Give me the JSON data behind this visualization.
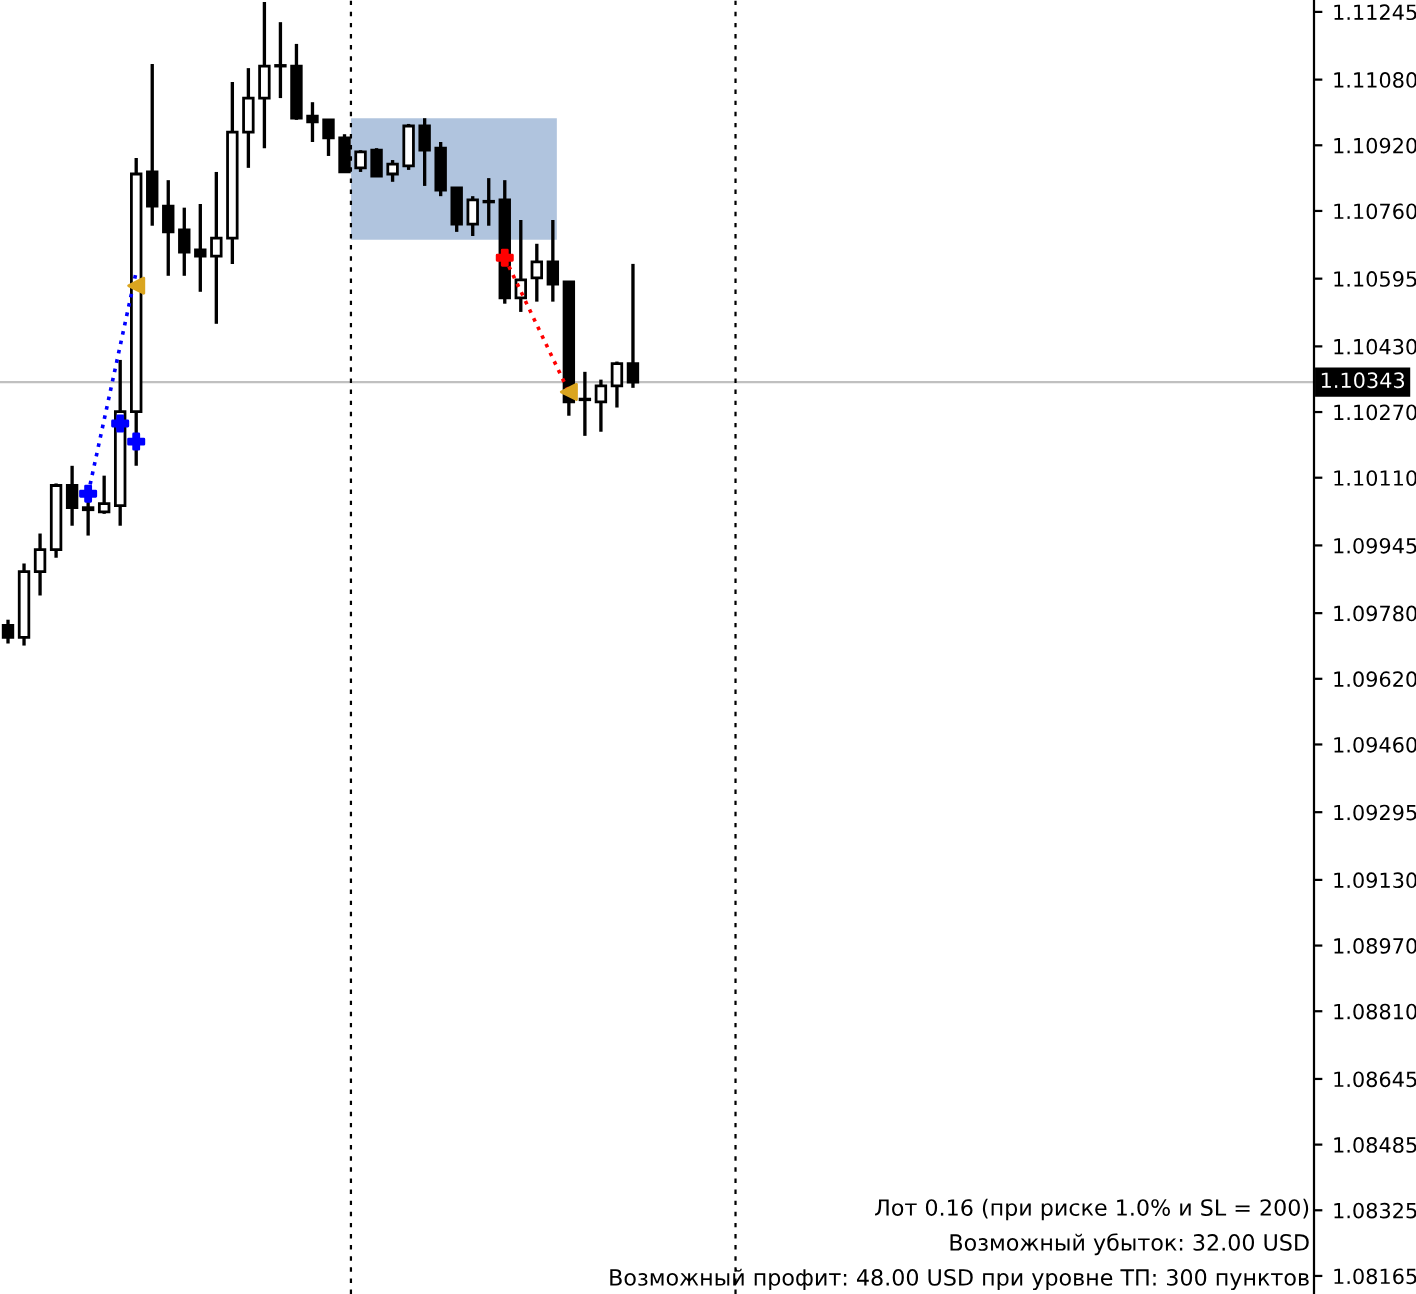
{
  "chart_data": {
    "type": "candlestick",
    "categories": [
      null,
      null,
      null,
      null,
      null,
      null,
      null,
      null,
      null,
      null,
      null,
      null,
      null,
      null,
      null,
      null,
      null,
      null,
      null,
      null,
      null,
      null,
      null,
      null,
      null,
      null,
      null,
      null,
      null,
      null,
      null,
      null,
      null,
      null,
      null,
      null,
      null,
      null,
      null,
      null,
      null,
      null,
      null,
      null,
      null,
      null,
      null,
      null,
      null,
      null,
      null,
      null,
      null,
      null,
      null,
      null,
      null,
      null,
      null,
      null,
      null,
      null,
      null,
      null,
      null,
      null,
      null,
      null,
      null,
      null,
      null,
      null,
      null,
      null,
      null,
      null,
      null,
      null,
      null,
      null,
      null,
      null
    ],
    "ohlc": [
      [
        1.0975,
        1.09764,
        1.09706,
        1.09721
      ],
      [
        1.09721,
        1.09901,
        1.09701,
        1.09881
      ],
      [
        1.09881,
        1.09974,
        1.09823,
        1.09935
      ],
      [
        1.09935,
        1.10096,
        1.09915,
        1.10091
      ],
      [
        1.10091,
        1.10139,
        1.09993,
        1.10037
      ],
      [
        1.10037,
        1.10056,
        1.09969,
        1.10032
      ],
      [
        1.10027,
        1.10115,
        1.10022,
        1.10047
      ],
      [
        1.10042,
        1.10397,
        1.09993,
        1.10271
      ],
      [
        1.10271,
        1.10889,
        1.10139,
        1.1085
      ],
      [
        1.10855,
        1.11118,
        1.10724,
        1.10772
      ],
      [
        1.10772,
        1.10835,
        1.10602,
        1.10709
      ],
      [
        1.10714,
        1.10768,
        1.10602,
        1.1066
      ],
      [
        1.10665,
        1.10777,
        1.10563,
        1.1065
      ],
      [
        1.1065,
        1.10855,
        1.10485,
        1.10694
      ],
      [
        1.10694,
        1.11074,
        1.10631,
        1.10952
      ],
      [
        1.10952,
        1.11108,
        1.10865,
        1.11035
      ],
      [
        1.11035,
        1.11269,
        1.10913,
        1.11113
      ],
      [
        1.11113,
        1.1122,
        1.11035,
        1.11113
      ],
      [
        1.11113,
        1.11167,
        1.10982,
        1.10986
      ],
      [
        1.10991,
        1.11025,
        1.10928,
        1.10977
      ],
      [
        1.10982,
        1.10982,
        1.10894,
        1.10938
      ],
      [
        1.10938,
        1.10947,
        1.10855,
        1.10855
      ],
      [
        1.10865,
        1.10908,
        1.10855,
        1.10904
      ],
      [
        1.10908,
        1.10913,
        1.10845,
        1.10845
      ],
      [
        1.1085,
        1.10884,
        1.10831,
        1.10874
      ],
      [
        1.1087,
        1.10972,
        1.1086,
        1.10967
      ],
      [
        1.10967,
        1.10986,
        1.10821,
        1.10908
      ],
      [
        1.10913,
        1.10928,
        1.10796,
        1.10811
      ],
      [
        1.10816,
        1.10816,
        1.10709,
        1.10728
      ],
      [
        1.10728,
        1.10796,
        1.10699,
        1.10787
      ],
      [
        1.10782,
        1.1084,
        1.10724,
        1.10782
      ],
      [
        1.10787,
        1.10835,
        1.10534,
        1.10548
      ],
      [
        1.10548,
        1.10738,
        1.10514,
        1.10592
      ],
      [
        1.10597,
        1.1068,
        1.10539,
        1.10636
      ],
      [
        1.10636,
        1.10738,
        1.10539,
        1.10582
      ],
      [
        1.10587,
        1.10587,
        1.10261,
        1.10295
      ],
      [
        1.103,
        1.10368,
        1.10212,
        1.103
      ],
      [
        1.10295,
        1.10349,
        1.10222,
        1.10334
      ],
      [
        1.10334,
        1.10393,
        1.10281,
        1.10388
      ],
      [
        1.10388,
        1.10631,
        1.10329,
        1.10343
      ],
      null,
      null,
      null,
      null,
      null,
      null,
      null,
      null,
      null,
      null,
      null,
      null,
      null,
      null,
      null,
      null,
      null,
      null,
      null,
      null,
      null,
      null,
      null,
      null,
      null,
      null,
      null,
      null,
      null,
      null,
      null,
      null,
      null,
      null,
      null,
      null,
      null,
      null,
      null,
      null,
      null,
      null
    ],
    "series": [
      {
        "type": "line",
        "color": "#0000ff",
        "line_style": "dotted",
        "values": [
          null,
          null,
          null,
          null,
          null,
          1.10071,
          null,
          null,
          1.10612,
          null,
          null,
          null,
          null,
          null,
          null,
          null,
          null,
          null,
          null,
          null,
          null,
          null,
          null,
          null,
          null,
          null,
          null,
          null,
          null,
          null,
          null,
          null,
          null,
          null,
          null,
          null,
          null,
          null,
          null,
          null,
          null,
          null,
          null,
          null,
          null,
          null,
          null,
          null,
          null,
          null,
          null,
          null,
          null,
          null,
          null,
          null,
          null,
          null,
          null,
          null,
          null,
          null,
          null,
          null,
          null,
          null,
          null,
          null,
          null,
          null,
          null,
          null,
          null,
          null,
          null,
          null,
          null,
          null,
          null,
          null,
          null,
          null
        ]
      },
      {
        "type": "line",
        "color": "#ff0000",
        "line_style": "dotted",
        "values": [
          null,
          null,
          null,
          null,
          null,
          null,
          null,
          null,
          null,
          null,
          null,
          null,
          null,
          null,
          null,
          null,
          null,
          null,
          null,
          null,
          null,
          null,
          null,
          null,
          null,
          null,
          null,
          null,
          null,
          null,
          null,
          1.10646,
          null,
          null,
          null,
          1.10319,
          null,
          null,
          null,
          null,
          null,
          null,
          null,
          null,
          null,
          null,
          null,
          null,
          null,
          null,
          null,
          null,
          null,
          null,
          null,
          null,
          null,
          null,
          null,
          null,
          null,
          null,
          null,
          null,
          null,
          null,
          null,
          null,
          null,
          null,
          null,
          null,
          null,
          null,
          null,
          null,
          null,
          null,
          null,
          null,
          null,
          null
        ]
      },
      {
        "type": "scatter",
        "color": "#0000ff",
        "marker": "cross",
        "values": [
          null,
          null,
          null,
          null,
          null,
          1.10071,
          null,
          1.10242,
          1.10198,
          null,
          null,
          null,
          null,
          null,
          null,
          null,
          null,
          null,
          null,
          null,
          null,
          null,
          null,
          null,
          null,
          null,
          null,
          null,
          null,
          null,
          null,
          null,
          null,
          null,
          null,
          null,
          null,
          null,
          null,
          null,
          null,
          null,
          null,
          null,
          null,
          null,
          null,
          null,
          null,
          null,
          null,
          null,
          null,
          null,
          null,
          null,
          null,
          null,
          null,
          null,
          null,
          null,
          null,
          null,
          null,
          null,
          null,
          null,
          null,
          null,
          null,
          null,
          null,
          null,
          null,
          null,
          null,
          null,
          null,
          null,
          null,
          null
        ]
      },
      {
        "type": "scatter",
        "color": "#ff0000",
        "marker": "cross",
        "values": [
          null,
          null,
          null,
          null,
          null,
          null,
          null,
          null,
          null,
          null,
          null,
          null,
          null,
          null,
          null,
          null,
          null,
          null,
          null,
          null,
          null,
          null,
          null,
          null,
          null,
          null,
          null,
          null,
          null,
          null,
          null,
          1.10646,
          null,
          null,
          null,
          null,
          null,
          null,
          null,
          null,
          null,
          null,
          null,
          null,
          null,
          null,
          null,
          null,
          null,
          null,
          null,
          null,
          null,
          null,
          null,
          null,
          null,
          null,
          null,
          null,
          null,
          null,
          null,
          null,
          null,
          null,
          null,
          null,
          null,
          null,
          null,
          null,
          null,
          null,
          null,
          null,
          null,
          null,
          null,
          null,
          null,
          null
        ]
      },
      {
        "type": "scatter",
        "color": "#daa520",
        "marker": "triangle",
        "values": [
          null,
          null,
          null,
          null,
          null,
          null,
          null,
          null,
          1.10578,
          null,
          null,
          null,
          null,
          null,
          null,
          null,
          null,
          null,
          null,
          null,
          null,
          null,
          null,
          null,
          null,
          null,
          null,
          null,
          null,
          null,
          null,
          null,
          null,
          null,
          null,
          1.10319,
          null,
          null,
          null,
          null,
          null,
          null,
          null,
          null,
          null,
          null,
          null,
          null,
          null,
          null,
          null,
          null,
          null,
          null,
          null,
          null,
          null,
          null,
          null,
          null,
          null,
          null,
          null,
          null,
          null,
          null,
          null,
          null,
          null,
          null,
          null,
          null,
          null,
          null,
          null,
          null,
          null,
          null,
          null,
          null,
          null,
          null
        ]
      }
    ],
    "ylim": [
      1.08121,
      1.11274
    ],
    "yticks": [
      1.11245,
      {
        "value": 1.1108,
        "label": "1.11080"
      },
      {
        "value": 1.1092,
        "label": "1.10920"
      },
      {
        "value": 1.1076,
        "label": "1.10760"
      },
      1.10595,
      {
        "value": 1.1043,
        "label": "1.10430"
      },
      {
        "value": 1.1027,
        "label": "1.10270"
      },
      {
        "value": 1.1011,
        "label": "1.10110"
      },
      1.09945,
      {
        "value": 1.0978,
        "label": "1.09780"
      },
      {
        "value": 1.0962,
        "label": "1.09620"
      },
      {
        "value": 1.0946,
        "label": "1.09460"
      },
      1.09295,
      {
        "value": 1.0913,
        "label": "1.09130"
      },
      {
        "value": 1.0897,
        "label": "1.08970"
      },
      {
        "value": 1.0881,
        "label": "1.08810"
      },
      1.08645,
      1.08485,
      1.08325,
      1.08165
    ],
    "ref_lines": [
      {
        "axis": "y",
        "value": 1.10343,
        "label": "1.10343",
        "color": "#c0c0c0"
      }
    ],
    "tick_labels": "y",
    "annotations": [
      "Лот 0.16 (при риске 1.0% и SL = 200)",
      "Возможный убыток: 32.00 USD",
      "Возможный профит: 48.00 USD при уровне ТП: 300 пунктов"
    ]
  }
}
